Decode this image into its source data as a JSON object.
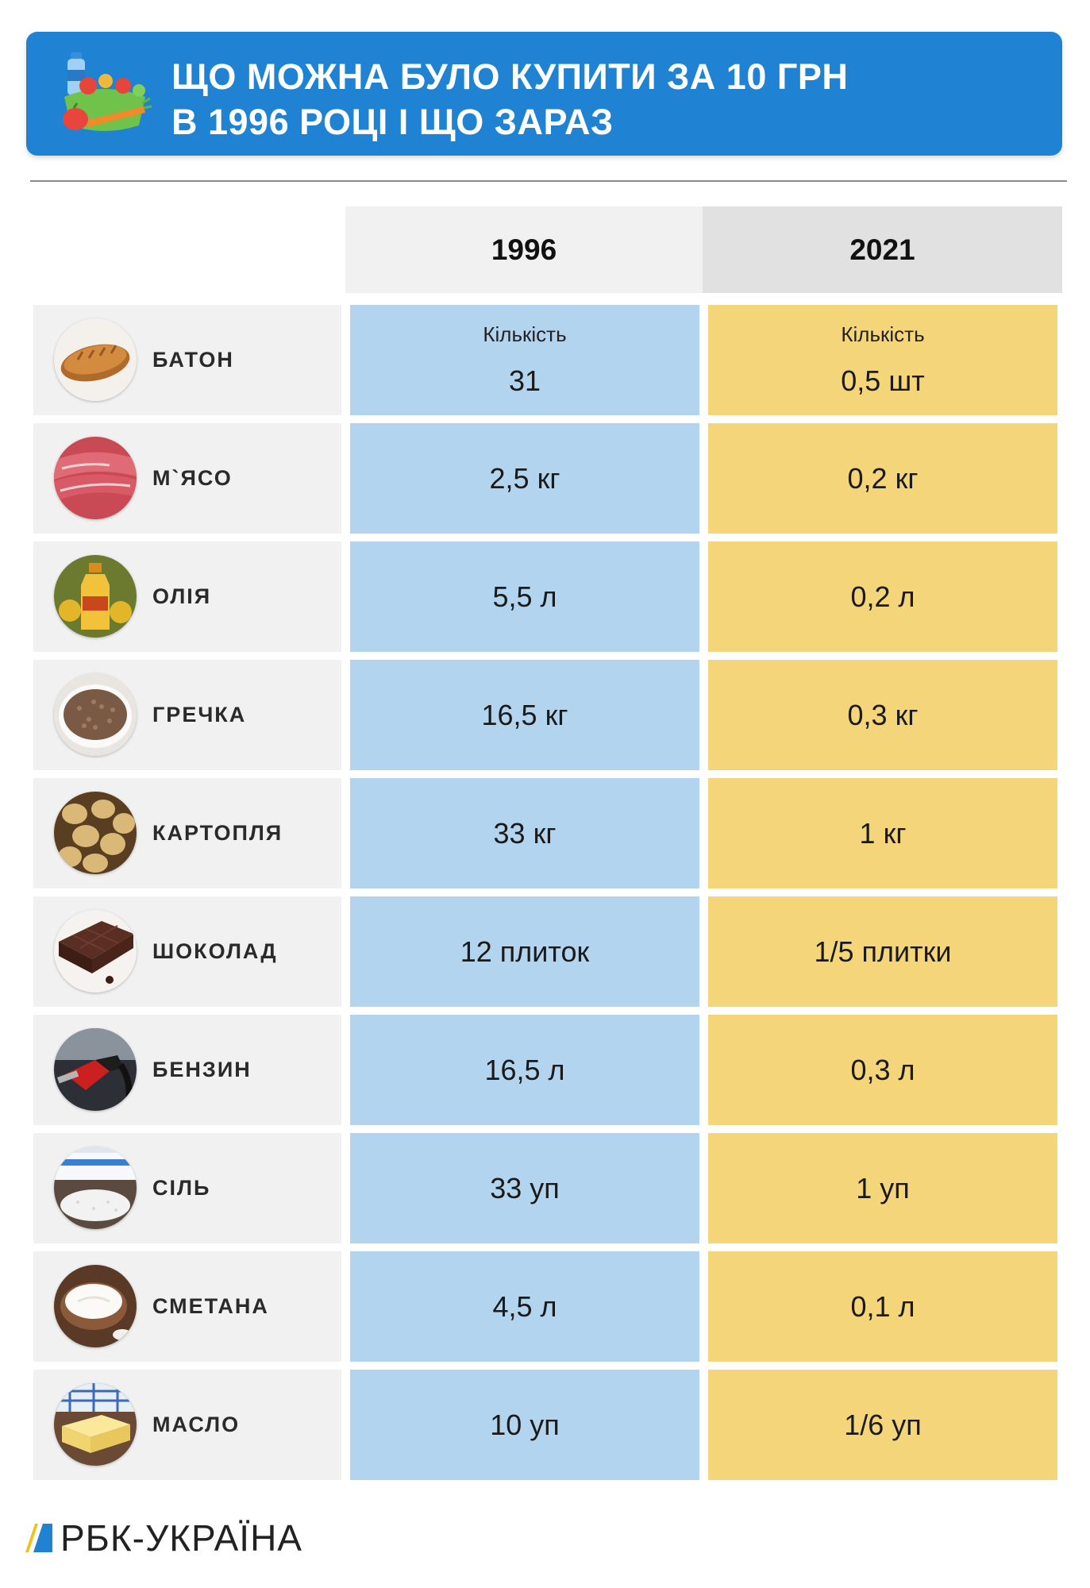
{
  "header": {
    "title_line1": "ЩО МОЖНА БУЛО КУПИТИ ЗА 10 ГРН",
    "title_line2": "В 1996 РОЦІ І ЩО ЗАРАЗ",
    "icon": "groceries-icon"
  },
  "table": {
    "col_1996": "1996",
    "col_2021": "2021",
    "rows": [
      {
        "item": "БАТОН",
        "icon": "bread-loaf-icon",
        "sub_1996": "Кількість",
        "v1996": "31",
        "sub_2021": "Кількість",
        "v2021": "0,5 шт"
      },
      {
        "item": "М`ЯСО",
        "icon": "meat-icon",
        "v1996": "2,5 кг",
        "v2021": "0,2 кг"
      },
      {
        "item": "ОЛІЯ",
        "icon": "oil-bottle-icon",
        "v1996": "5,5 л",
        "v2021": "0,2 л"
      },
      {
        "item": "ГРЕЧКА",
        "icon": "buckwheat-icon",
        "v1996": "16,5 кг",
        "v2021": "0,3 кг"
      },
      {
        "item": "КАРТОПЛЯ",
        "icon": "potatoes-icon",
        "v1996": "33 кг",
        "v2021": "1 кг"
      },
      {
        "item": "ШОКОЛАД",
        "icon": "chocolate-icon",
        "v1996": "12 плиток",
        "v2021": "1/5 плитки"
      },
      {
        "item": "БЕНЗИН",
        "icon": "fuel-nozzle-icon",
        "v1996": "16,5 л",
        "v2021": "0,3 л"
      },
      {
        "item": "СІЛЬ",
        "icon": "salt-icon",
        "v1996": "33 уп",
        "v2021": "1 уп"
      },
      {
        "item": "СМЕТАНА",
        "icon": "sour-cream-icon",
        "v1996": "4,5 л",
        "v2021": "0,1 л"
      },
      {
        "item": "МАСЛО",
        "icon": "butter-icon",
        "v1996": "10 уп",
        "v2021": "1/6 уп"
      }
    ]
  },
  "footer": {
    "logo_text": "РБК-УКРАЇНА",
    "logo_icon": "rbc-ukraine-logo-icon"
  },
  "colors": {
    "banner": "#1f82d2",
    "col_1996": "#b3d4ee",
    "col_2021": "#f5d579",
    "item_bg": "#f1f1f1"
  }
}
